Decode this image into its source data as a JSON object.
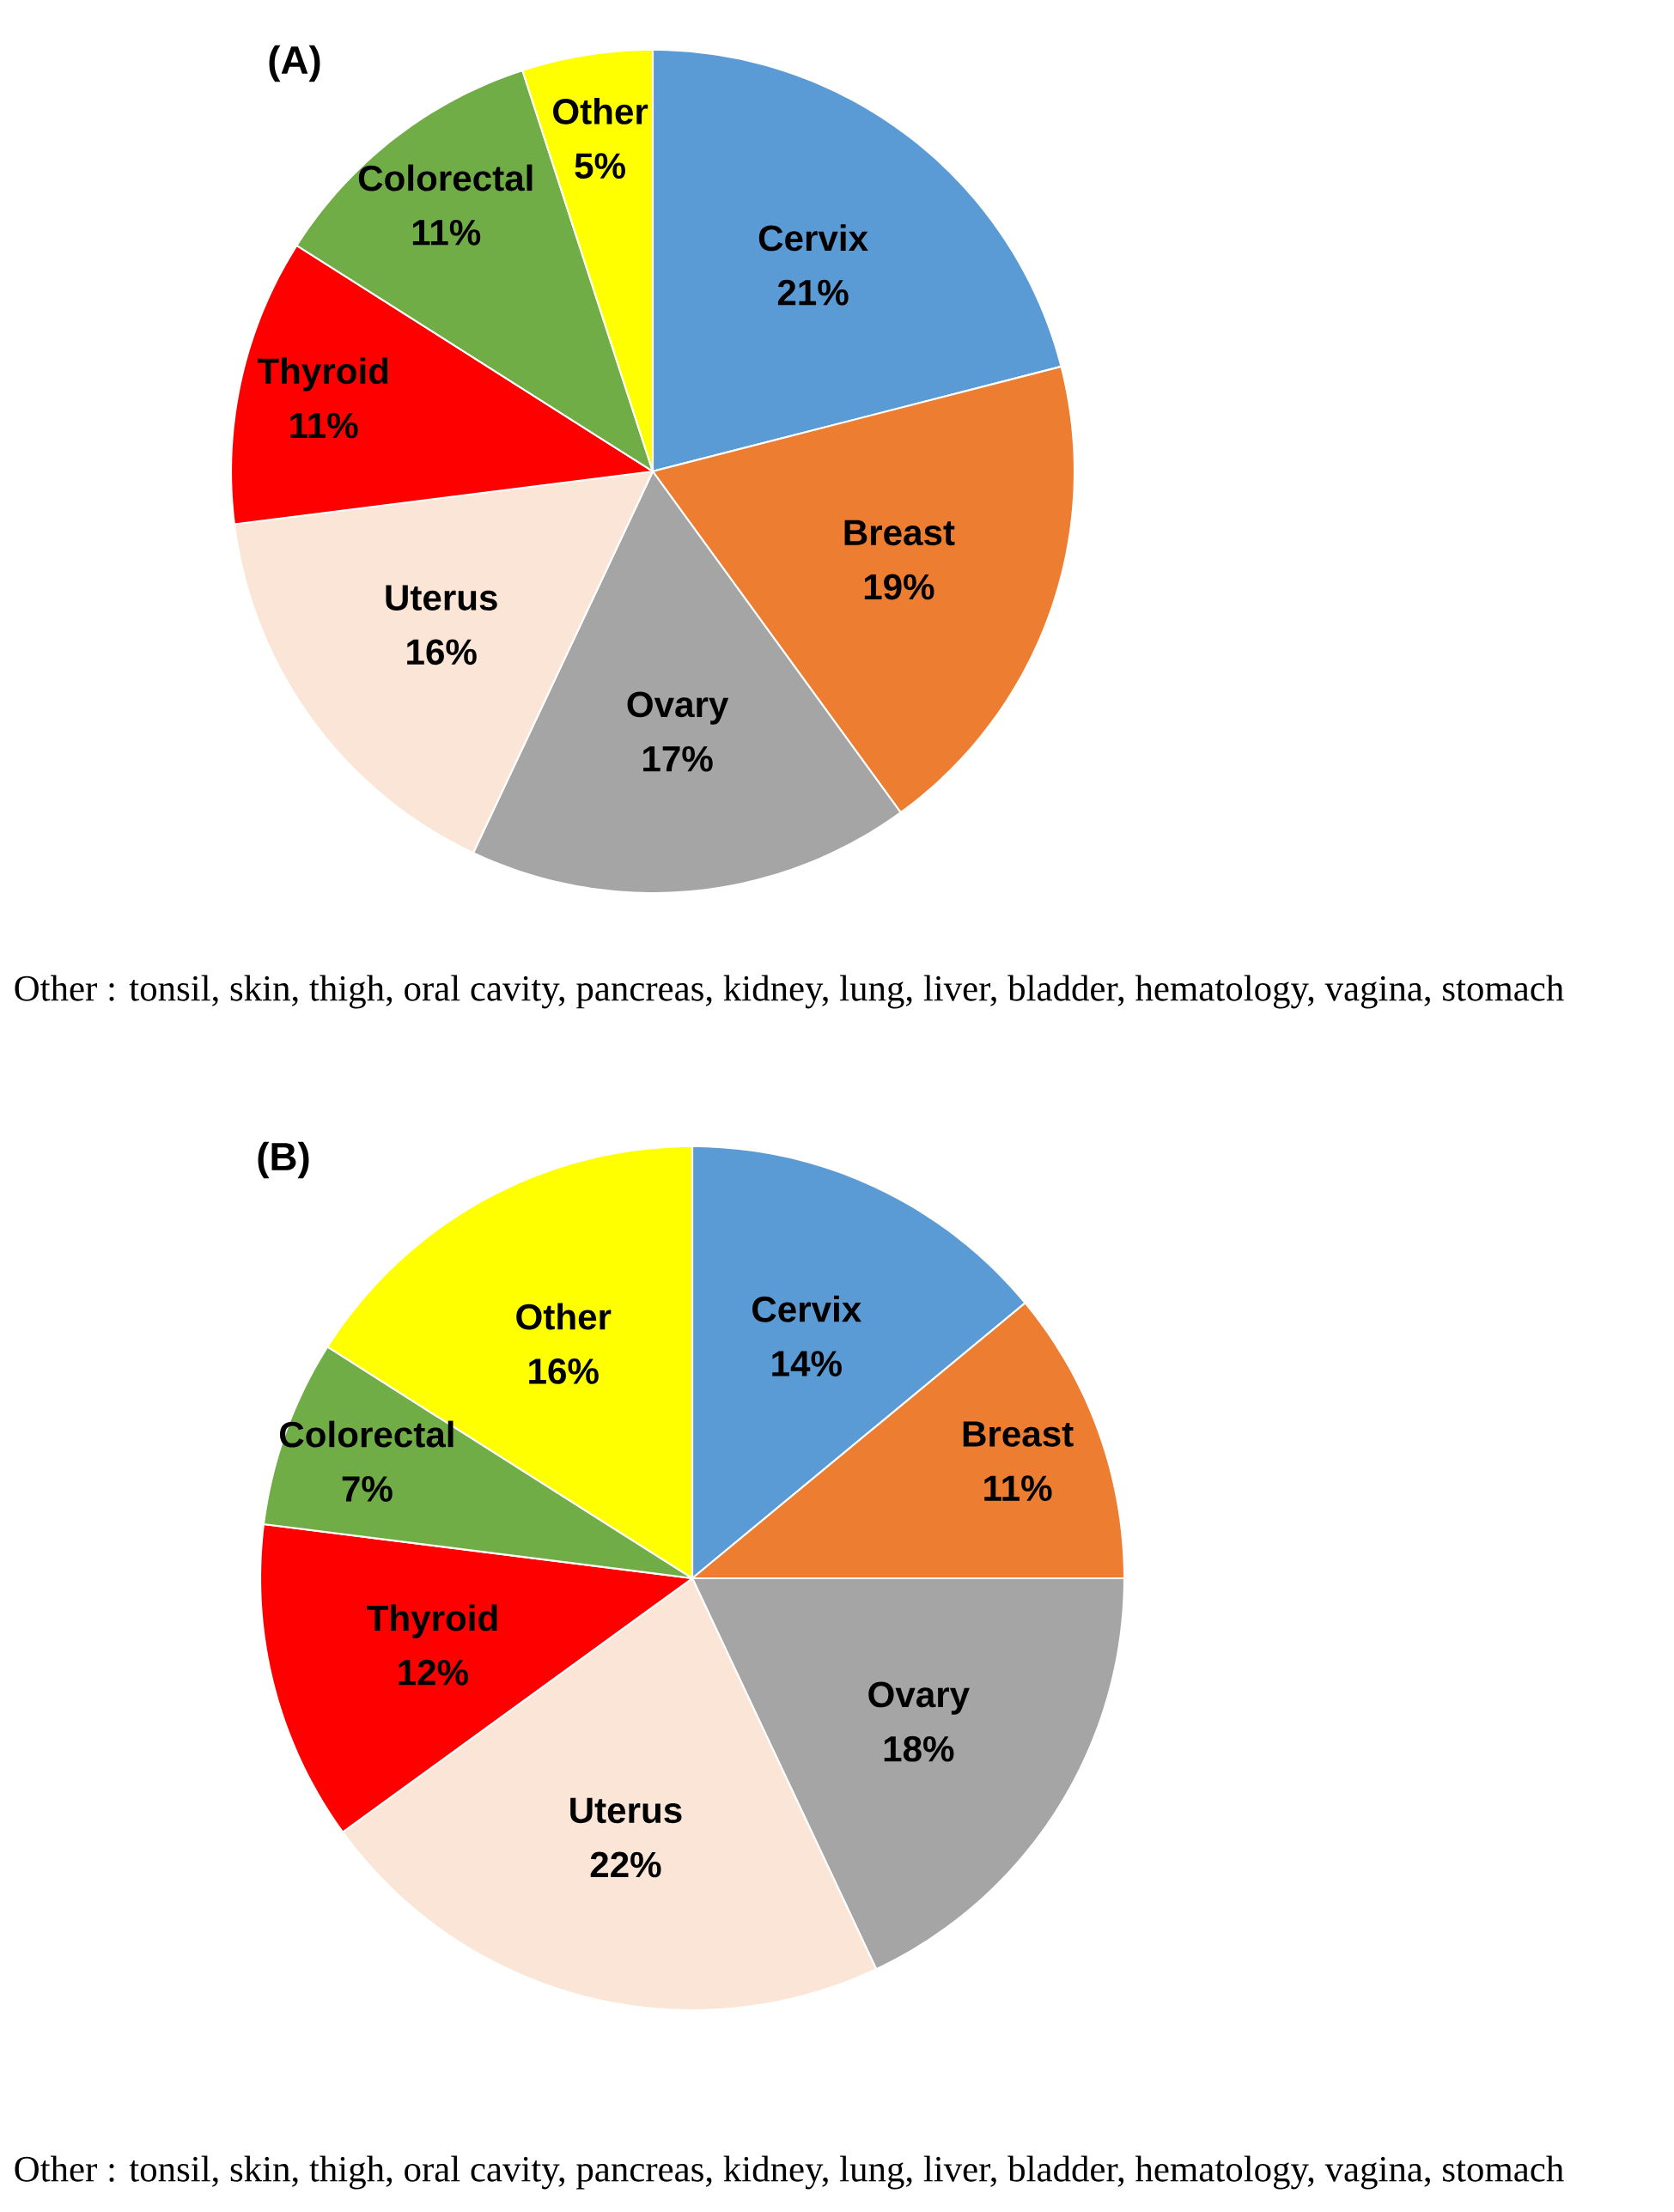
{
  "chart_data": [
    {
      "type": "pie",
      "title": "(A)",
      "categories": [
        "Cervix",
        "Breast",
        "Ovary",
        "Uterus",
        "Thyroid",
        "Colorectal",
        "Other"
      ],
      "values": [
        21,
        19,
        17,
        16,
        11,
        11,
        5
      ],
      "value_labels": [
        "21%",
        "19%",
        "17%",
        "16%",
        "11%",
        "11%",
        "5%"
      ],
      "colors": [
        "#5b9bd5",
        "#ed7d31",
        "#a5a5a5",
        "#fbe5d6",
        "#ff0000",
        "#70ad47",
        "#ffff00"
      ],
      "annotations": [
        "Other : tonsil, skin, thigh, oral cavity, pancreas, kidney, lung, liver, bladder, hematology, vagina, stomach"
      ]
    },
    {
      "type": "pie",
      "title": "(B)",
      "categories": [
        "Cervix",
        "Breast",
        "Ovary",
        "Uterus",
        "Thyroid",
        "Colorectal",
        "Other"
      ],
      "values": [
        14,
        11,
        18,
        22,
        12,
        7,
        16
      ],
      "value_labels": [
        "14%",
        "11%",
        "18%",
        "22%",
        "12%",
        "7%",
        "16%"
      ],
      "colors": [
        "#5b9bd5",
        "#ed7d31",
        "#a5a5a5",
        "#fbe5d6",
        "#ff0000",
        "#70ad47",
        "#ffff00"
      ],
      "annotations": [
        "Other : tonsil, skin, thigh, oral cavity, pancreas, kidney, lung, liver, bladder, hematology, vagina, stomach"
      ]
    }
  ]
}
